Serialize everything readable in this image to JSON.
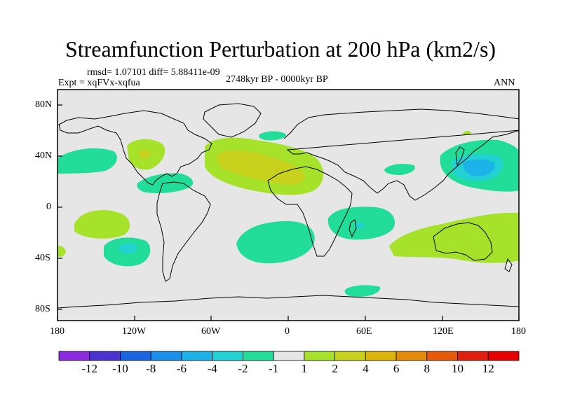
{
  "header": {
    "title": "Streamfunction Perturbation at 200 hPa (km2/s)",
    "stats": "rmsd= 1.07101 diff= 5.88411e-09",
    "experiment": "Expt = xqFVx-xqfua",
    "period": "2748kyr BP - 0000kyr BP",
    "season": "ANN"
  },
  "map": {
    "lon_ticks": [
      "180",
      "120W",
      "60W",
      "0",
      "60E",
      "120E",
      "180"
    ],
    "lat_ticks": [
      "80N",
      "40N",
      "0",
      "40S",
      "80S"
    ],
    "background_color": "#e6e6e6"
  },
  "colorbar": {
    "labels": [
      "-12",
      "-10",
      "-8",
      "-6",
      "-4",
      "-2",
      "-1",
      "1",
      "2",
      "4",
      "6",
      "8",
      "10",
      "12"
    ],
    "colors": [
      "#8a2be2",
      "#4a32d2",
      "#1c64e0",
      "#1a8ee8",
      "#1cb4e8",
      "#22d2d2",
      "#22dc9a",
      "#e6e6e6",
      "#a6e22a",
      "#c8d21c",
      "#dcb40a",
      "#e48a0a",
      "#e65a0a",
      "#e21e0e",
      "#e60000"
    ]
  }
}
